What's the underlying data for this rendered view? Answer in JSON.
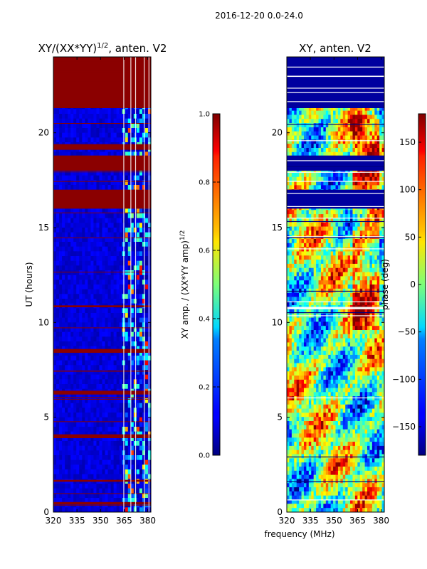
{
  "suptitle": "2016-12-20 0.0-24.0",
  "colors": {
    "masked": "#8b0000",
    "low": "#00007f",
    "high": "#7f0000",
    "frame": "#000000"
  },
  "chart_data": [
    {
      "type": "heatmap",
      "title_main": "XY/(XX*YY)",
      "title_sup": "1/2",
      "title_tail": ", anten. V2",
      "xlabel": "",
      "ylabel": "UT (hours)",
      "xlim": [
        320,
        382
      ],
      "ylim": [
        0,
        24
      ],
      "xticks": [
        320,
        335,
        350,
        365,
        380
      ],
      "yticks": [
        0,
        5,
        10,
        15,
        20
      ],
      "colorbar": {
        "label": "XY amp. / (XX*YY amp)",
        "label_sup": "1/2",
        "range": [
          0.0,
          1.0
        ],
        "ticks": [
          "0.0",
          "0.2",
          "0.4",
          "0.6",
          "0.8",
          "1.0"
        ],
        "colormap": "jet"
      },
      "masked_time_bands_hours": [
        [
          21.3,
          24.0
        ],
        [
          16.0,
          17.0
        ],
        [
          18.0,
          18.8
        ],
        [
          19.1,
          19.4
        ],
        [
          10.8,
          10.9
        ],
        [
          8.4,
          8.6
        ],
        [
          6.2,
          6.4
        ],
        [
          3.9,
          4.1
        ],
        [
          0.4,
          0.5
        ],
        [
          1.6,
          1.7
        ]
      ],
      "active_freq_range_mhz": [
        362,
        382
      ]
    },
    {
      "type": "heatmap",
      "title_main": "XY, anten. V2",
      "xlabel": "frequency (MHz)",
      "ylabel": "",
      "xlim": [
        320,
        382
      ],
      "ylim": [
        0,
        24
      ],
      "xticks": [
        320,
        335,
        350,
        365,
        380
      ],
      "yticks": [
        0,
        5,
        10,
        15,
        20
      ],
      "colorbar": {
        "label": "phase (deg)",
        "range": [
          -180,
          180
        ],
        "ticks": [
          "150",
          "100",
          "50",
          "0",
          "−50",
          "−100",
          "−150"
        ],
        "tick_values": [
          150,
          100,
          50,
          0,
          -50,
          -100,
          -150
        ],
        "colormap": "jet"
      },
      "blank_time_bands_hours": [
        [
          21.3,
          24.0
        ],
        [
          16.0,
          17.0
        ],
        [
          18.0,
          18.8
        ]
      ]
    }
  ]
}
